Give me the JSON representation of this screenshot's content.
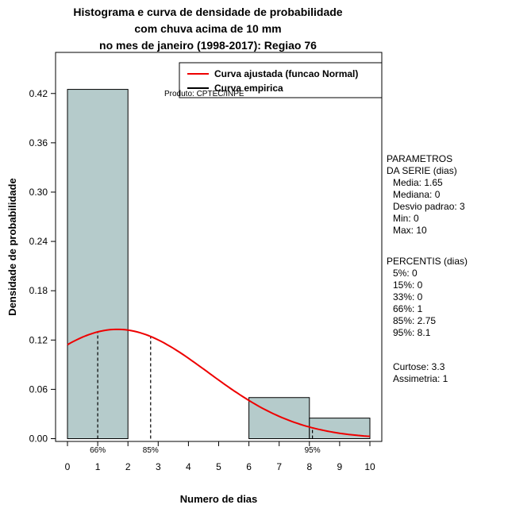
{
  "chart_data": {
    "type": "bar",
    "subtype": "histogram-with-density-curve",
    "title_lines": [
      "Histograma e curva de densidade de probabilidade",
      "com chuva acima de 10 mm",
      "no mes de janeiro (1998-2017): Regiao 76"
    ],
    "xlabel": "Numero de dias",
    "ylabel": "Densidade de probabilidade",
    "xlim": [
      0,
      10
    ],
    "ylim": [
      0,
      0.47
    ],
    "x_ticks": [
      0,
      1,
      2,
      3,
      4,
      5,
      6,
      7,
      8,
      9,
      10
    ],
    "y_ticks": [
      0.0,
      0.06,
      0.12,
      0.18,
      0.24,
      0.3,
      0.36,
      0.42
    ],
    "bars": [
      {
        "x0": 0,
        "x1": 2,
        "density": 0.425
      },
      {
        "x0": 6,
        "x1": 8,
        "density": 0.05
      },
      {
        "x0": 8,
        "x1": 10,
        "density": 0.025
      }
    ],
    "fitted_normal": {
      "mean": 1.65,
      "sd": 3
    },
    "percentile_markers": [
      {
        "label": "66%",
        "x": 1
      },
      {
        "label": "85%",
        "x": 2.75
      },
      {
        "label": "95%",
        "x": 8.1
      }
    ],
    "legend": {
      "position": "top",
      "items": [
        {
          "label": "Curva ajustada (funcao Normal)",
          "color": "#ee0000"
        },
        {
          "label": "Curva empirica",
          "color": "#000000"
        }
      ]
    },
    "annotation": "Produto: CPTEC/INPE",
    "colors": {
      "bar_fill": "#b5cbcb",
      "bar_stroke": "#000000",
      "curve": "#ee0000",
      "axis": "#000000"
    },
    "grid": false
  },
  "side_panel": {
    "series_params": {
      "title_line1": "PARAMETROS",
      "title_line2": "DA SERIE (dias)",
      "lines": [
        "Media: 1.65",
        "Mediana: 0",
        "Desvio padrao: 3",
        "Min: 0",
        "Max: 10"
      ]
    },
    "percentiles": {
      "title": "PERCENTIS (dias)",
      "lines": [
        "5%: 0",
        "15%: 0",
        "33%: 0",
        "66%: 1",
        "85%: 2.75",
        "95%: 8.1"
      ]
    },
    "moments": {
      "kurtosis": "Curtose: 3.3",
      "skewness": "Assimetria: 1"
    }
  }
}
